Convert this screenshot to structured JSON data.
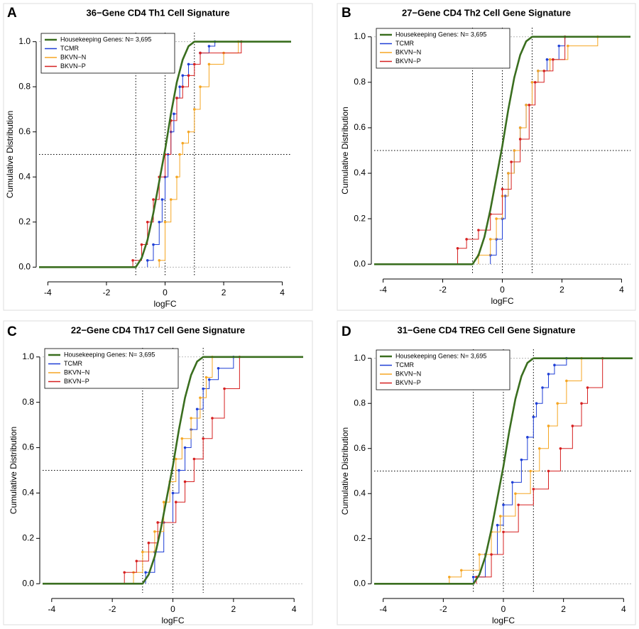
{
  "chart_data": [
    {
      "type": "ecdf",
      "panel": "A",
      "title": "36−Gene CD4 Th1 Cell Signature",
      "x_label": "logFC",
      "y_label": "Cumulative Distribution",
      "xlim": [
        -4.3,
        4.3
      ],
      "ylim": [
        -0.04,
        1.04
      ],
      "xticks": [
        -4,
        -2,
        0,
        2,
        4
      ],
      "yticks": [
        {
          "value": 0,
          "label": "0.0"
        },
        {
          "value": 0.2,
          "label": "0.2"
        },
        {
          "value": 0.4,
          "label": "0.4"
        },
        {
          "value": 0.6,
          "label": "0.6"
        },
        {
          "value": 0.8,
          "label": "0.8"
        },
        {
          "value": 1,
          "label": "1.0"
        }
      ],
      "ref_x": [
        -1,
        0,
        1
      ],
      "ref_y": 0.5,
      "legend": "top-left",
      "series": [
        {
          "name": "Housekeeping Genes: N= 3,695",
          "color": "#3a6e1f",
          "style": "curve",
          "x": [
            -4.3,
            -1,
            -0.8,
            -0.6,
            -0.4,
            -0.2,
            0,
            0.2,
            0.4,
            0.6,
            0.8,
            1,
            4.3
          ],
          "values": [
            0,
            0,
            0.04,
            0.12,
            0.24,
            0.38,
            0.52,
            0.68,
            0.82,
            0.92,
            0.98,
            1,
            1
          ]
        },
        {
          "name": "TCMR",
          "color": "#1f3fd6",
          "style": "step",
          "x": [
            -0.6,
            -0.4,
            -0.2,
            -0.1,
            0,
            0.1,
            0.2,
            0.3,
            0.4,
            0.5,
            0.6,
            0.8,
            1.2,
            1.5,
            1.7
          ],
          "values": [
            0.03,
            0.1,
            0.2,
            0.3,
            0.4,
            0.5,
            0.6,
            0.68,
            0.75,
            0.8,
            0.85,
            0.9,
            0.95,
            0.98,
            1
          ]
        },
        {
          "name": "BKVN−N",
          "color": "#f5a623",
          "style": "step",
          "x": [
            -0.2,
            0,
            0.2,
            0.4,
            0.5,
            0.6,
            0.8,
            1,
            1.2,
            1.5,
            2,
            2.5
          ],
          "values": [
            0.03,
            0.2,
            0.3,
            0.4,
            0.5,
            0.55,
            0.6,
            0.7,
            0.8,
            0.9,
            0.95,
            1
          ]
        },
        {
          "name": "BKVN−P",
          "color": "#d62020",
          "style": "step",
          "x": [
            -1.1,
            -0.8,
            -0.6,
            -0.4,
            -0.2,
            0,
            0.2,
            0.4,
            0.6,
            0.8,
            1,
            1.2,
            2.6
          ],
          "values": [
            0.03,
            0.1,
            0.2,
            0.3,
            0.4,
            0.5,
            0.65,
            0.75,
            0.8,
            0.85,
            0.9,
            0.95,
            1
          ]
        }
      ]
    },
    {
      "type": "ecdf",
      "panel": "B",
      "title": "27−Gene CD4 Th2 Cell Gene Signature",
      "x_label": "logFC",
      "y_label": "Cumulative Distribution",
      "xlim": [
        -4.3,
        4.3
      ],
      "ylim": [
        -0.04,
        1.04
      ],
      "xticks": [
        -4,
        -2,
        0,
        2,
        4
      ],
      "yticks": [
        {
          "value": 0,
          "label": "0.0"
        },
        {
          "value": 0.2,
          "label": "0.2"
        },
        {
          "value": 0.4,
          "label": "0.4"
        },
        {
          "value": 0.6,
          "label": "0.6"
        },
        {
          "value": 0.8,
          "label": "0.8"
        },
        {
          "value": 1,
          "label": "1.0"
        }
      ],
      "ref_x": [
        -1,
        0,
        1
      ],
      "ref_y": 0.5,
      "legend": "top-left",
      "series": [
        {
          "name": "Housekeeping Genes: N= 3,695",
          "color": "#3a6e1f",
          "style": "curve",
          "x": [
            -4.3,
            -1,
            -0.8,
            -0.6,
            -0.4,
            -0.2,
            0,
            0.2,
            0.4,
            0.6,
            0.8,
            1,
            4.3
          ],
          "values": [
            0,
            0,
            0.04,
            0.12,
            0.24,
            0.38,
            0.52,
            0.68,
            0.82,
            0.92,
            0.98,
            1,
            1
          ]
        },
        {
          "name": "TCMR",
          "color": "#1f3fd6",
          "style": "step",
          "x": [
            -0.4,
            -0.2,
            0,
            0.1,
            0.2,
            0.4,
            0.6,
            0.8,
            1,
            1.2,
            1.5,
            1.9,
            2.1
          ],
          "values": [
            0.04,
            0.11,
            0.2,
            0.3,
            0.4,
            0.5,
            0.6,
            0.7,
            0.8,
            0.85,
            0.9,
            0.96,
            1
          ]
        },
        {
          "name": "BKVN−N",
          "color": "#f5a623",
          "style": "step",
          "x": [
            -0.8,
            -0.4,
            -0.2,
            0,
            0.2,
            0.4,
            0.6,
            0.8,
            1,
            1.2,
            1.6,
            2.2,
            3.2
          ],
          "values": [
            0.04,
            0.11,
            0.2,
            0.3,
            0.4,
            0.5,
            0.6,
            0.7,
            0.8,
            0.85,
            0.9,
            0.96,
            1
          ]
        },
        {
          "name": "BKVN−P",
          "color": "#d62020",
          "style": "step",
          "x": [
            -1.5,
            -1.2,
            -0.8,
            -0.4,
            0,
            0.3,
            0.6,
            0.9,
            1.1,
            1.4,
            1.7,
            2.1
          ],
          "values": [
            0.07,
            0.11,
            0.15,
            0.22,
            0.33,
            0.45,
            0.55,
            0.7,
            0.8,
            0.85,
            0.9,
            1
          ]
        }
      ]
    },
    {
      "type": "ecdf",
      "panel": "C",
      "title": "22−Gene CD4 Th17 Cell Gene Signature",
      "x_label": "logFC",
      "y_label": "Cumulative Distribution",
      "xlim": [
        -4.3,
        4.3
      ],
      "ylim": [
        -0.04,
        1.04
      ],
      "xticks": [
        -4,
        -2,
        0,
        2,
        4
      ],
      "yticks": [
        {
          "value": 0,
          "label": "0.0"
        },
        {
          "value": 0.2,
          "label": "0.2"
        },
        {
          "value": 0.4,
          "label": "0.4"
        },
        {
          "value": 0.6,
          "label": "0.6"
        },
        {
          "value": 0.8,
          "label": "0.8"
        },
        {
          "value": 1,
          "label": "1.0"
        }
      ],
      "ref_x": [
        -1,
        0,
        1
      ],
      "ref_y": 0.5,
      "legend": "top-left",
      "series": [
        {
          "name": "Housekeeping Genes: N= 3,695",
          "color": "#3a6e1f",
          "style": "curve",
          "x": [
            -4.3,
            -1,
            -0.8,
            -0.6,
            -0.4,
            -0.2,
            0,
            0.2,
            0.4,
            0.6,
            0.8,
            1,
            4.3
          ],
          "values": [
            0,
            0,
            0.04,
            0.12,
            0.24,
            0.38,
            0.52,
            0.68,
            0.82,
            0.92,
            0.98,
            1,
            1
          ]
        },
        {
          "name": "TCMR",
          "color": "#1f3fd6",
          "style": "step",
          "x": [
            -0.9,
            -0.6,
            -0.3,
            0,
            0.2,
            0.4,
            0.6,
            0.8,
            1,
            1.2,
            1.5,
            2
          ],
          "values": [
            0.05,
            0.14,
            0.27,
            0.4,
            0.5,
            0.6,
            0.68,
            0.77,
            0.86,
            0.9,
            0.95,
            1
          ]
        },
        {
          "name": "BKVN−N",
          "color": "#f5a623",
          "style": "step",
          "x": [
            -1.3,
            -1,
            -0.6,
            -0.3,
            -0.1,
            0.1,
            0.3,
            0.6,
            0.9,
            1.1,
            1.3
          ],
          "values": [
            0.05,
            0.14,
            0.23,
            0.36,
            0.45,
            0.55,
            0.64,
            0.73,
            0.82,
            0.91,
            1
          ]
        },
        {
          "name": "BKVN−P",
          "color": "#d62020",
          "style": "step",
          "x": [
            -1.6,
            -1.2,
            -0.8,
            -0.5,
            0.1,
            0.4,
            0.7,
            1,
            1.3,
            1.7,
            2.2
          ],
          "values": [
            0.05,
            0.1,
            0.18,
            0.27,
            0.36,
            0.45,
            0.55,
            0.64,
            0.73,
            0.86,
            1
          ]
        }
      ]
    },
    {
      "type": "ecdf",
      "panel": "D",
      "title": "31−Gene CD4 TREG Cell Gene Signature",
      "x_label": "logFC",
      "y_label": "Cumulative Distribution",
      "xlim": [
        -4.3,
        4.3
      ],
      "ylim": [
        -0.04,
        1.04
      ],
      "xticks": [
        -4,
        -2,
        0,
        2,
        4
      ],
      "yticks": [
        {
          "value": 0,
          "label": "0.0"
        },
        {
          "value": 0.2,
          "label": "0.2"
        },
        {
          "value": 0.4,
          "label": "0.4"
        },
        {
          "value": 0.6,
          "label": "0.6"
        },
        {
          "value": 0.8,
          "label": "0.8"
        },
        {
          "value": 1,
          "label": "1.0"
        }
      ],
      "ref_x": [
        -1,
        0,
        1
      ],
      "ref_y": 0.5,
      "legend": "top-left",
      "series": [
        {
          "name": "Housekeeping Genes: N= 3,695",
          "color": "#3a6e1f",
          "style": "curve",
          "x": [
            -4.3,
            -1,
            -0.8,
            -0.6,
            -0.4,
            -0.2,
            0,
            0.2,
            0.4,
            0.6,
            0.8,
            1,
            4.3
          ],
          "values": [
            0,
            0,
            0.04,
            0.12,
            0.24,
            0.38,
            0.52,
            0.68,
            0.82,
            0.92,
            0.98,
            1,
            1
          ]
        },
        {
          "name": "TCMR",
          "color": "#1f3fd6",
          "style": "step",
          "x": [
            -1,
            -0.6,
            -0.2,
            0,
            0.3,
            0.6,
            0.8,
            1,
            1.1,
            1.3,
            1.5,
            1.7,
            2.1
          ],
          "values": [
            0.03,
            0.13,
            0.26,
            0.35,
            0.45,
            0.55,
            0.65,
            0.74,
            0.8,
            0.87,
            0.93,
            0.97,
            1
          ]
        },
        {
          "name": "BKVN−N",
          "color": "#f5a623",
          "style": "step",
          "x": [
            -1.8,
            -1.4,
            -0.8,
            -0.4,
            -0.1,
            0.4,
            0.9,
            1.2,
            1.5,
            1.8,
            2.1,
            2.6
          ],
          "values": [
            0.03,
            0.06,
            0.13,
            0.23,
            0.3,
            0.4,
            0.5,
            0.6,
            0.7,
            0.8,
            0.9,
            1
          ]
        },
        {
          "name": "BKVN−P",
          "color": "#d62020",
          "style": "step",
          "x": [
            -0.9,
            -0.4,
            0,
            0.5,
            1,
            1.5,
            1.9,
            2.3,
            2.6,
            2.8,
            3.3
          ],
          "values": [
            0.03,
            0.13,
            0.23,
            0.35,
            0.42,
            0.5,
            0.6,
            0.7,
            0.8,
            0.87,
            1
          ]
        }
      ]
    }
  ]
}
